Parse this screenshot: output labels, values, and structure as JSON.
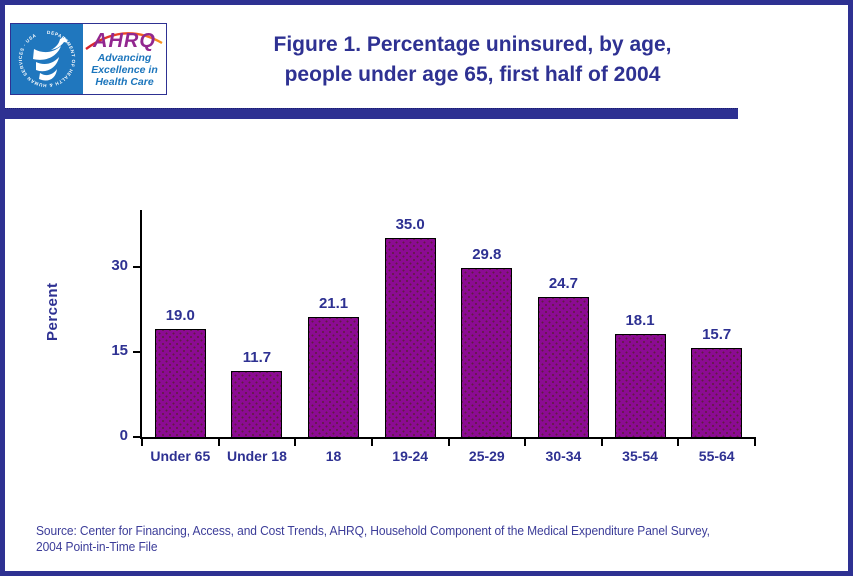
{
  "page": {
    "title_line1": "Figure 1. Percentage uninsured, by age,",
    "title_line2": "people under age 65, first half of 2004",
    "source_line1": "Source: Center for Financing, Access, and Cost Trends, AHRQ, Household Component of the Medical Expenditure Panel Survey,",
    "source_line2": "2004 Point-in-Time File",
    "border_color": "#2E3192"
  },
  "logos": {
    "hhs_ring_text": "DEPARTMENT OF HEALTH & HUMAN SERVICES · USA",
    "ahrq_acronym": "AHRQ",
    "ahrq_tagline_line1": "Advancing",
    "ahrq_tagline_line2": "Excellence in",
    "ahrq_tagline_line3": "Health Care"
  },
  "chart_data": {
    "type": "bar",
    "title": "Figure 1. Percentage uninsured, by age, people under age 65, first half of 2004",
    "categories": [
      "Under 65",
      "Under 18",
      "18",
      "19-24",
      "25-29",
      "30-34",
      "35-54",
      "55-64"
    ],
    "values": [
      19.0,
      11.7,
      21.1,
      35.0,
      29.8,
      24.7,
      18.1,
      15.7
    ],
    "value_labels": [
      "19.0",
      "11.7",
      "21.1",
      "35.0",
      "29.8",
      "24.7",
      "18.1",
      "15.7"
    ],
    "xlabel": "",
    "ylabel": "Percent",
    "yticks": [
      0,
      15,
      30
    ],
    "ylim": [
      0,
      40
    ],
    "grid": false,
    "legend_position": "none",
    "bar_color": "#8C0B93",
    "bar_border_color": "#000000",
    "label_color": "#2E3192"
  }
}
